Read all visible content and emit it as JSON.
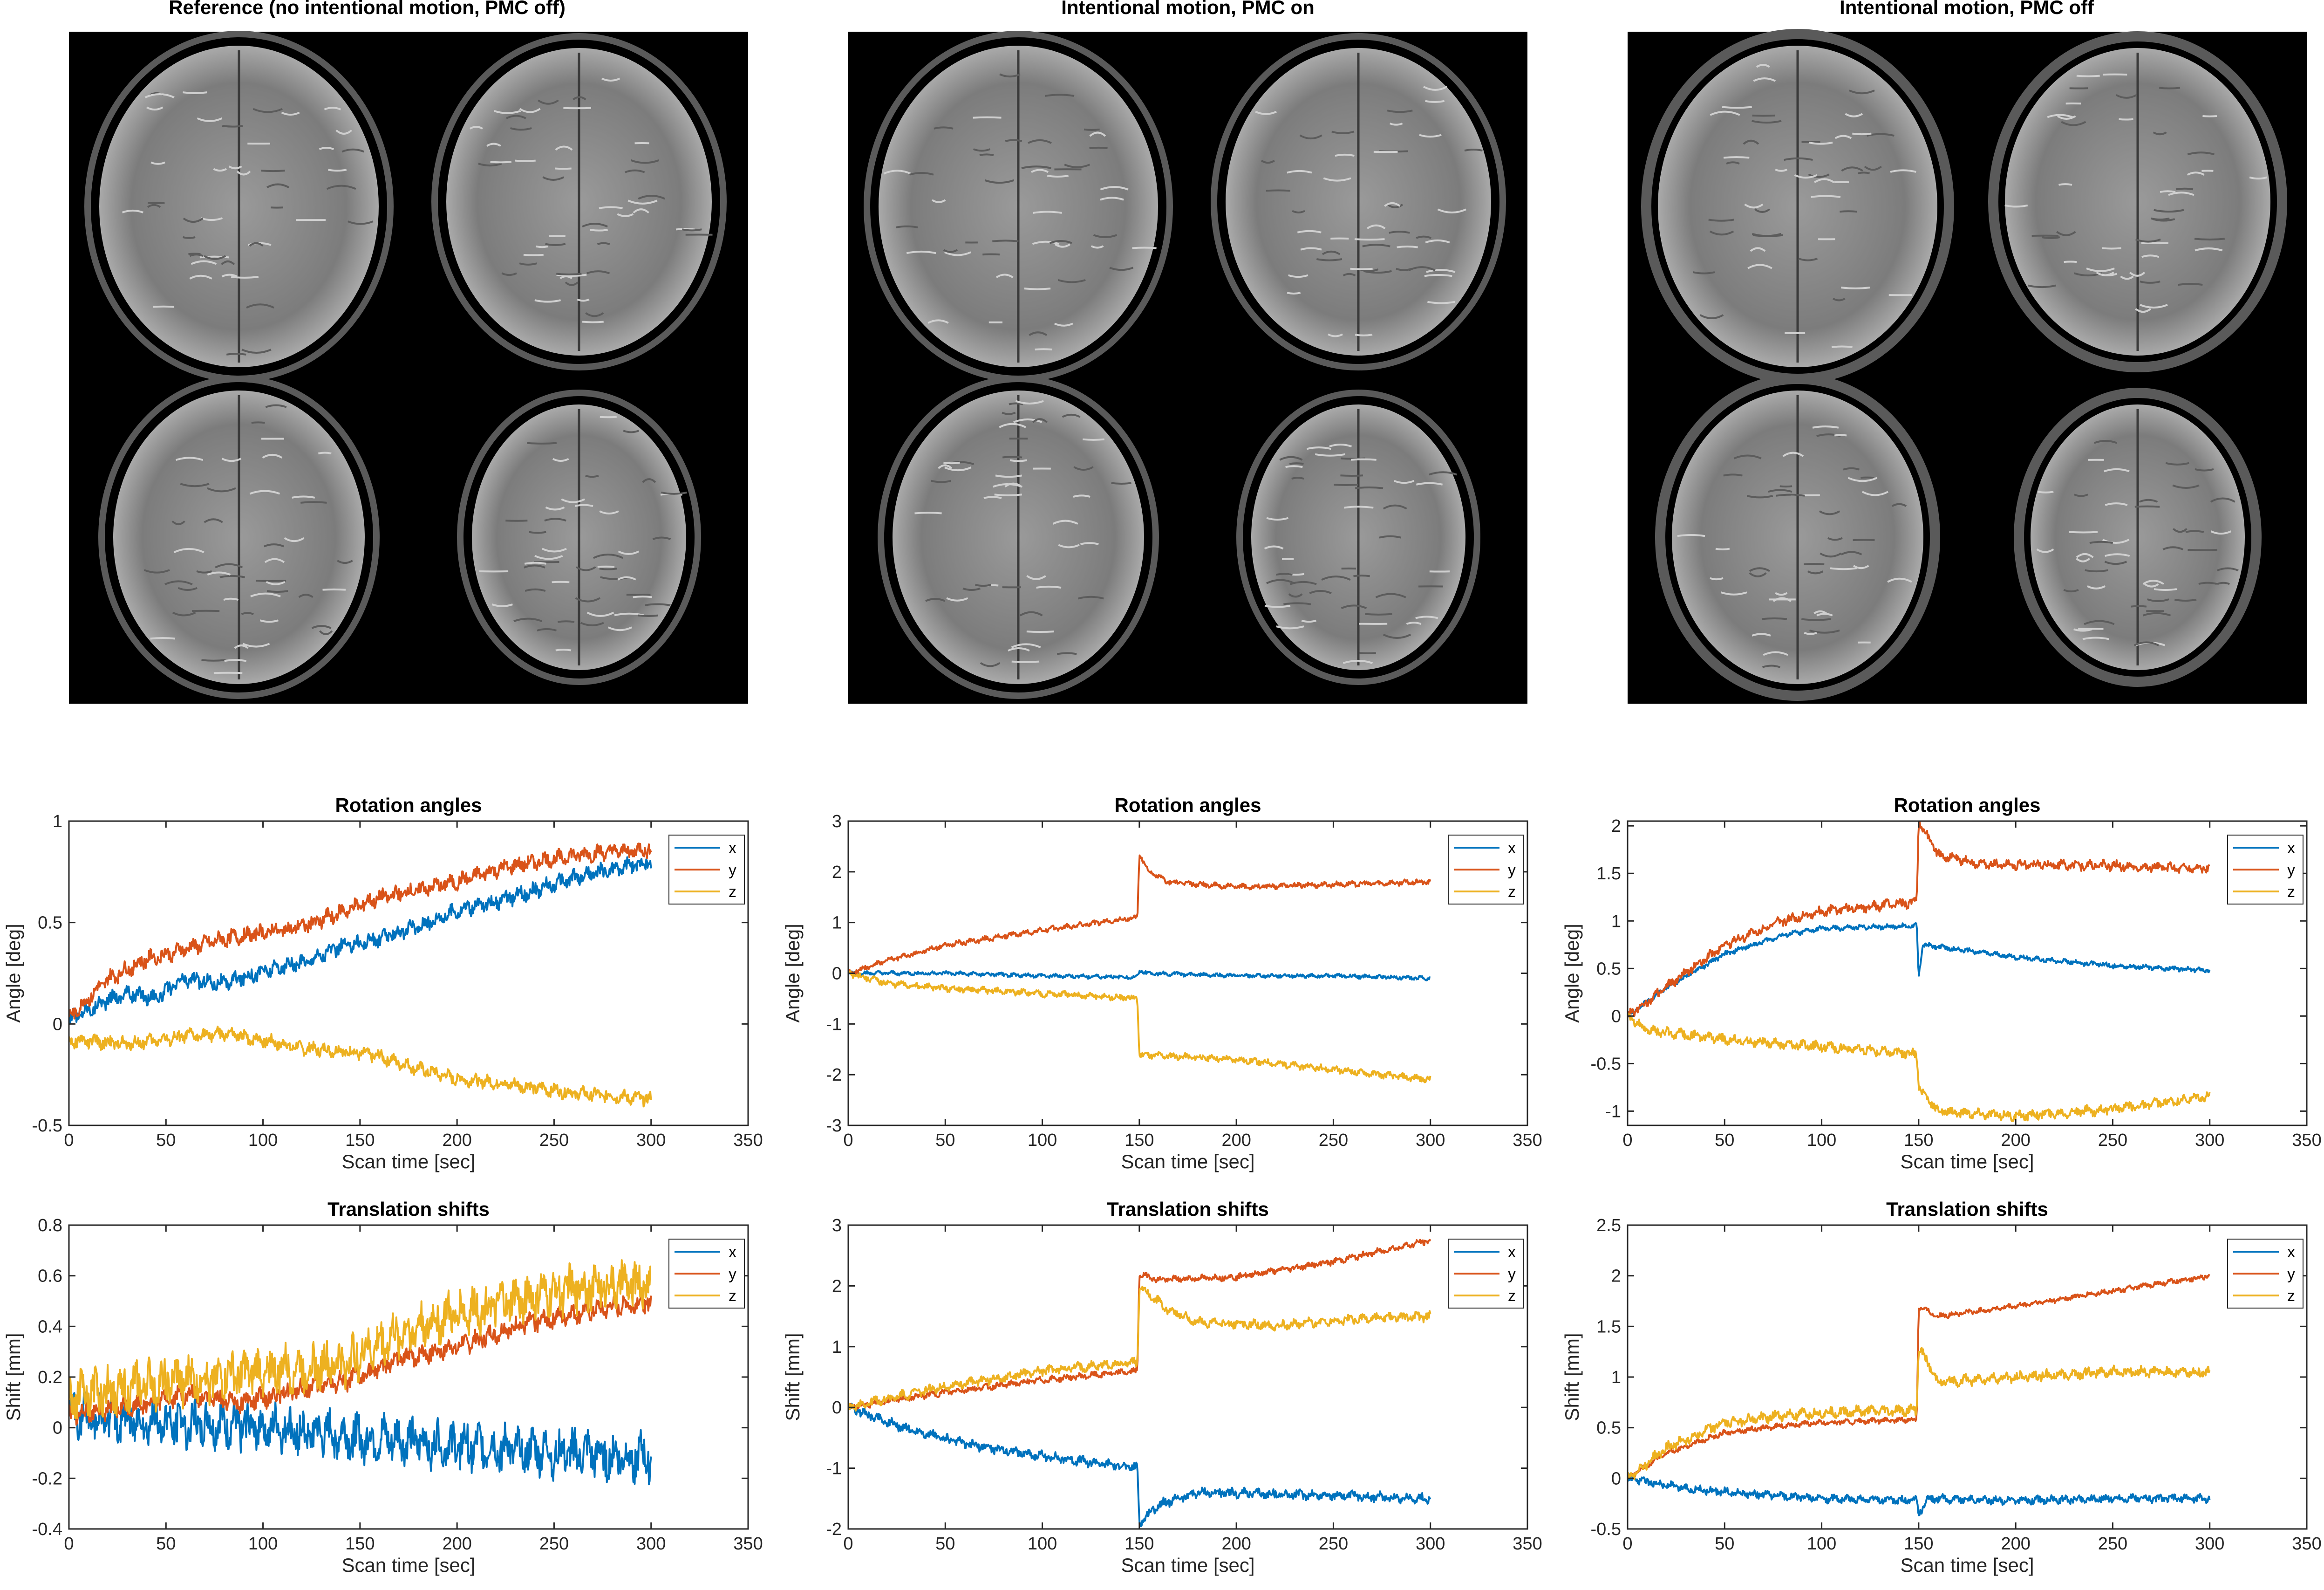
{
  "colors": {
    "x": "#0072BD",
    "y": "#D95319",
    "z": "#EDB120",
    "axis": "#262626"
  },
  "image_panels": [
    {
      "title": "Reference (no intentional motion, PMC off)"
    },
    {
      "title": "Intentional motion, PMC on"
    },
    {
      "title": "Intentional motion, PMC off"
    }
  ],
  "chart_data": [
    {
      "type": "line",
      "title": "Rotation angles",
      "xlabel": "Scan time [sec]",
      "ylabel": "Angle [deg]",
      "xlim": [
        0,
        350
      ],
      "ylim": [
        -0.5,
        1
      ],
      "xticks": [
        0,
        50,
        100,
        150,
        200,
        250,
        300,
        350
      ],
      "yticks": [
        -0.5,
        0,
        0.5,
        1
      ],
      "legend": [
        "x",
        "y",
        "z"
      ],
      "series": [
        {
          "name": "x",
          "color": "#0072BD",
          "noise": 0.03,
          "step": 0,
          "points": [
            [
              0,
              0.02
            ],
            [
              20,
              0.12
            ],
            [
              30,
              0.15
            ],
            [
              45,
              0.13
            ],
            [
              60,
              0.22
            ],
            [
              80,
              0.2
            ],
            [
              100,
              0.26
            ],
            [
              120,
              0.3
            ],
            [
              140,
              0.38
            ],
            [
              160,
              0.42
            ],
            [
              180,
              0.48
            ],
            [
              200,
              0.56
            ],
            [
              220,
              0.6
            ],
            [
              240,
              0.66
            ],
            [
              260,
              0.72
            ],
            [
              280,
              0.76
            ],
            [
              300,
              0.8
            ]
          ]
        },
        {
          "name": "y",
          "color": "#D95319",
          "noise": 0.03,
          "step": 0,
          "points": [
            [
              0,
              0.03
            ],
            [
              20,
              0.22
            ],
            [
              40,
              0.32
            ],
            [
              60,
              0.37
            ],
            [
              80,
              0.42
            ],
            [
              100,
              0.45
            ],
            [
              120,
              0.48
            ],
            [
              140,
              0.55
            ],
            [
              160,
              0.62
            ],
            [
              180,
              0.66
            ],
            [
              200,
              0.7
            ],
            [
              220,
              0.76
            ],
            [
              240,
              0.8
            ],
            [
              260,
              0.83
            ],
            [
              280,
              0.85
            ],
            [
              300,
              0.86
            ]
          ]
        },
        {
          "name": "z",
          "color": "#EDB120",
          "noise": 0.025,
          "step": 0,
          "points": [
            [
              0,
              -0.08
            ],
            [
              30,
              -0.1
            ],
            [
              60,
              -0.06
            ],
            [
              80,
              -0.05
            ],
            [
              100,
              -0.08
            ],
            [
              120,
              -0.12
            ],
            [
              140,
              -0.13
            ],
            [
              160,
              -0.16
            ],
            [
              180,
              -0.22
            ],
            [
              200,
              -0.27
            ],
            [
              230,
              -0.3
            ],
            [
              260,
              -0.34
            ],
            [
              300,
              -0.37
            ]
          ]
        }
      ]
    },
    {
      "type": "line",
      "title": "Rotation angles",
      "xlabel": "Scan time [sec]",
      "ylabel": "Angle [deg]",
      "xlim": [
        0,
        350
      ],
      "ylim": [
        -3,
        3
      ],
      "xticks": [
        0,
        50,
        100,
        150,
        200,
        250,
        300,
        350
      ],
      "yticks": [
        -3,
        -2,
        -1,
        0,
        1,
        2,
        3
      ],
      "legend": [
        "x",
        "y",
        "z"
      ],
      "series": [
        {
          "name": "x",
          "color": "#0072BD",
          "noise": 0.03,
          "step": 150,
          "points": [
            [
              0,
              0
            ],
            [
              50,
              0
            ],
            [
              100,
              -0.05
            ],
            [
              149,
              -0.08
            ],
            [
              150,
              0.05
            ],
            [
              155,
              0
            ],
            [
              200,
              -0.05
            ],
            [
              250,
              -0.05
            ],
            [
              300,
              -0.1
            ]
          ]
        },
        {
          "name": "y",
          "color": "#D95319",
          "noise": 0.04,
          "step": 150,
          "points": [
            [
              0,
              0
            ],
            [
              20,
              0.25
            ],
            [
              50,
              0.55
            ],
            [
              100,
              0.85
            ],
            [
              149,
              1.1
            ],
            [
              150,
              2.35
            ],
            [
              155,
              2.0
            ],
            [
              165,
              1.8
            ],
            [
              200,
              1.7
            ],
            [
              250,
              1.75
            ],
            [
              300,
              1.8
            ]
          ]
        },
        {
          "name": "z",
          "color": "#EDB120",
          "noise": 0.05,
          "step": 150,
          "points": [
            [
              0,
              0
            ],
            [
              20,
              -0.2
            ],
            [
              50,
              -0.3
            ],
            [
              100,
              -0.4
            ],
            [
              149,
              -0.5
            ],
            [
              150,
              -1.6
            ],
            [
              200,
              -1.7
            ],
            [
              250,
              -1.9
            ],
            [
              300,
              -2.1
            ]
          ]
        }
      ]
    },
    {
      "type": "line",
      "title": "Rotation angles",
      "xlabel": "Scan time [sec]",
      "ylabel": "Angle [deg]",
      "xlim": [
        0,
        350
      ],
      "ylim": [
        -1.15,
        2.05
      ],
      "xticks": [
        0,
        50,
        100,
        150,
        200,
        250,
        300,
        350
      ],
      "yticks": [
        -1,
        -0.5,
        0,
        0.5,
        1,
        1.5,
        2
      ],
      "legend": [
        "x",
        "y",
        "z"
      ],
      "series": [
        {
          "name": "x",
          "color": "#0072BD",
          "noise": 0.02,
          "step": 150,
          "points": [
            [
              0,
              0
            ],
            [
              20,
              0.3
            ],
            [
              50,
              0.65
            ],
            [
              80,
              0.85
            ],
            [
              100,
              0.92
            ],
            [
              149,
              0.95
            ],
            [
              150,
              0.4
            ],
            [
              152,
              0.75
            ],
            [
              170,
              0.7
            ],
            [
              200,
              0.62
            ],
            [
              250,
              0.53
            ],
            [
              300,
              0.48
            ]
          ]
        },
        {
          "name": "y",
          "color": "#D95319",
          "noise": 0.04,
          "step": 150,
          "points": [
            [
              0,
              0
            ],
            [
              20,
              0.3
            ],
            [
              50,
              0.75
            ],
            [
              80,
              1.0
            ],
            [
              100,
              1.1
            ],
            [
              149,
              1.2
            ],
            [
              150,
              2.05
            ],
            [
              160,
              1.7
            ],
            [
              180,
              1.6
            ],
            [
              250,
              1.58
            ],
            [
              300,
              1.55
            ]
          ]
        },
        {
          "name": "z",
          "color": "#EDB120",
          "noise": 0.04,
          "step": 150,
          "points": [
            [
              0,
              0
            ],
            [
              10,
              -0.15
            ],
            [
              30,
              -0.2
            ],
            [
              60,
              -0.27
            ],
            [
              100,
              -0.32
            ],
            [
              149,
              -0.4
            ],
            [
              150,
              -0.75
            ],
            [
              160,
              -1.0
            ],
            [
              200,
              -1.05
            ],
            [
              250,
              -0.98
            ],
            [
              300,
              -0.85
            ]
          ]
        }
      ]
    },
    {
      "type": "line",
      "title": "Translation shifts",
      "xlabel": "Scan time [sec]",
      "ylabel": "Shift [mm]",
      "xlim": [
        0,
        350
      ],
      "ylim": [
        -0.4,
        0.8
      ],
      "xticks": [
        0,
        50,
        100,
        150,
        200,
        250,
        300,
        350
      ],
      "yticks": [
        -0.4,
        -0.2,
        0,
        0.2,
        0.4,
        0.6,
        0.8
      ],
      "legend": [
        "x",
        "y",
        "z"
      ],
      "series": [
        {
          "name": "x",
          "color": "#0072BD",
          "noise": 0.07,
          "step": 0,
          "points": [
            [
              0,
              0.05
            ],
            [
              50,
              0.02
            ],
            [
              100,
              0.0
            ],
            [
              150,
              -0.04
            ],
            [
              200,
              -0.07
            ],
            [
              250,
              -0.1
            ],
            [
              300,
              -0.12
            ]
          ]
        },
        {
          "name": "y",
          "color": "#D95319",
          "noise": 0.03,
          "step": 0,
          "points": [
            [
              0,
              0.05
            ],
            [
              30,
              0.08
            ],
            [
              60,
              0.13
            ],
            [
              90,
              0.1
            ],
            [
              120,
              0.15
            ],
            [
              150,
              0.2
            ],
            [
              170,
              0.27
            ],
            [
              200,
              0.32
            ],
            [
              230,
              0.4
            ],
            [
              260,
              0.45
            ],
            [
              300,
              0.5
            ]
          ]
        },
        {
          "name": "z",
          "color": "#EDB120",
          "noise": 0.07,
          "step": 0,
          "points": [
            [
              0,
              0.12
            ],
            [
              50,
              0.18
            ],
            [
              100,
              0.22
            ],
            [
              140,
              0.25
            ],
            [
              170,
              0.37
            ],
            [
              200,
              0.45
            ],
            [
              230,
              0.5
            ],
            [
              260,
              0.55
            ],
            [
              300,
              0.57
            ]
          ]
        }
      ]
    },
    {
      "type": "line",
      "title": "Translation shifts",
      "xlabel": "Scan time [sec]",
      "ylabel": "Shift [mm]",
      "xlim": [
        0,
        350
      ],
      "ylim": [
        -2,
        3
      ],
      "xticks": [
        0,
        50,
        100,
        150,
        200,
        250,
        300,
        350
      ],
      "yticks": [
        -2,
        -1,
        0,
        1,
        2,
        3
      ],
      "legend": [
        "x",
        "y",
        "z"
      ],
      "series": [
        {
          "name": "x",
          "color": "#0072BD",
          "noise": 0.06,
          "step": 150,
          "points": [
            [
              0,
              0
            ],
            [
              30,
              -0.35
            ],
            [
              60,
              -0.6
            ],
            [
              100,
              -0.8
            ],
            [
              149,
              -1.0
            ],
            [
              150,
              -1.9
            ],
            [
              160,
              -1.6
            ],
            [
              180,
              -1.4
            ],
            [
              250,
              -1.45
            ],
            [
              300,
              -1.5
            ]
          ]
        },
        {
          "name": "y",
          "color": "#D95319",
          "noise": 0.04,
          "step": 150,
          "points": [
            [
              0,
              0
            ],
            [
              50,
              0.25
            ],
            [
              100,
              0.45
            ],
            [
              149,
              0.6
            ],
            [
              150,
              2.2
            ],
            [
              160,
              2.1
            ],
            [
              200,
              2.15
            ],
            [
              250,
              2.4
            ],
            [
              300,
              2.75
            ]
          ]
        },
        {
          "name": "z",
          "color": "#EDB120",
          "noise": 0.06,
          "step": 150,
          "points": [
            [
              0,
              0
            ],
            [
              50,
              0.35
            ],
            [
              100,
              0.6
            ],
            [
              149,
              0.75
            ],
            [
              150,
              2.0
            ],
            [
              165,
              1.6
            ],
            [
              180,
              1.4
            ],
            [
              220,
              1.35
            ],
            [
              260,
              1.45
            ],
            [
              300,
              1.5
            ]
          ]
        }
      ]
    },
    {
      "type": "line",
      "title": "Translation shifts",
      "xlabel": "Scan time [sec]",
      "ylabel": "Shift [mm]",
      "xlim": [
        0,
        350
      ],
      "ylim": [
        -0.5,
        2.5
      ],
      "xticks": [
        0,
        50,
        100,
        150,
        200,
        250,
        300,
        350
      ],
      "yticks": [
        -0.5,
        0,
        0.5,
        1,
        1.5,
        2,
        2.5
      ],
      "legend": [
        "x",
        "y",
        "z"
      ],
      "series": [
        {
          "name": "x",
          "color": "#0072BD",
          "noise": 0.03,
          "step": 150,
          "points": [
            [
              0,
              0
            ],
            [
              30,
              -0.1
            ],
            [
              60,
              -0.15
            ],
            [
              100,
              -0.2
            ],
            [
              149,
              -0.22
            ],
            [
              150,
              -0.35
            ],
            [
              155,
              -0.2
            ],
            [
              200,
              -0.22
            ],
            [
              250,
              -0.2
            ],
            [
              300,
              -0.2
            ]
          ]
        },
        {
          "name": "y",
          "color": "#D95319",
          "noise": 0.02,
          "step": 150,
          "points": [
            [
              0,
              0
            ],
            [
              20,
              0.25
            ],
            [
              50,
              0.45
            ],
            [
              80,
              0.52
            ],
            [
              100,
              0.55
            ],
            [
              149,
              0.58
            ],
            [
              150,
              1.7
            ],
            [
              160,
              1.6
            ],
            [
              200,
              1.7
            ],
            [
              250,
              1.85
            ],
            [
              300,
              2.0
            ]
          ]
        },
        {
          "name": "z",
          "color": "#EDB120",
          "noise": 0.04,
          "step": 150,
          "points": [
            [
              0,
              0
            ],
            [
              20,
              0.3
            ],
            [
              50,
              0.55
            ],
            [
              80,
              0.62
            ],
            [
              100,
              0.65
            ],
            [
              149,
              0.67
            ],
            [
              150,
              1.3
            ],
            [
              160,
              0.95
            ],
            [
              200,
              1.0
            ],
            [
              250,
              1.05
            ],
            [
              300,
              1.05
            ]
          ]
        }
      ]
    }
  ]
}
